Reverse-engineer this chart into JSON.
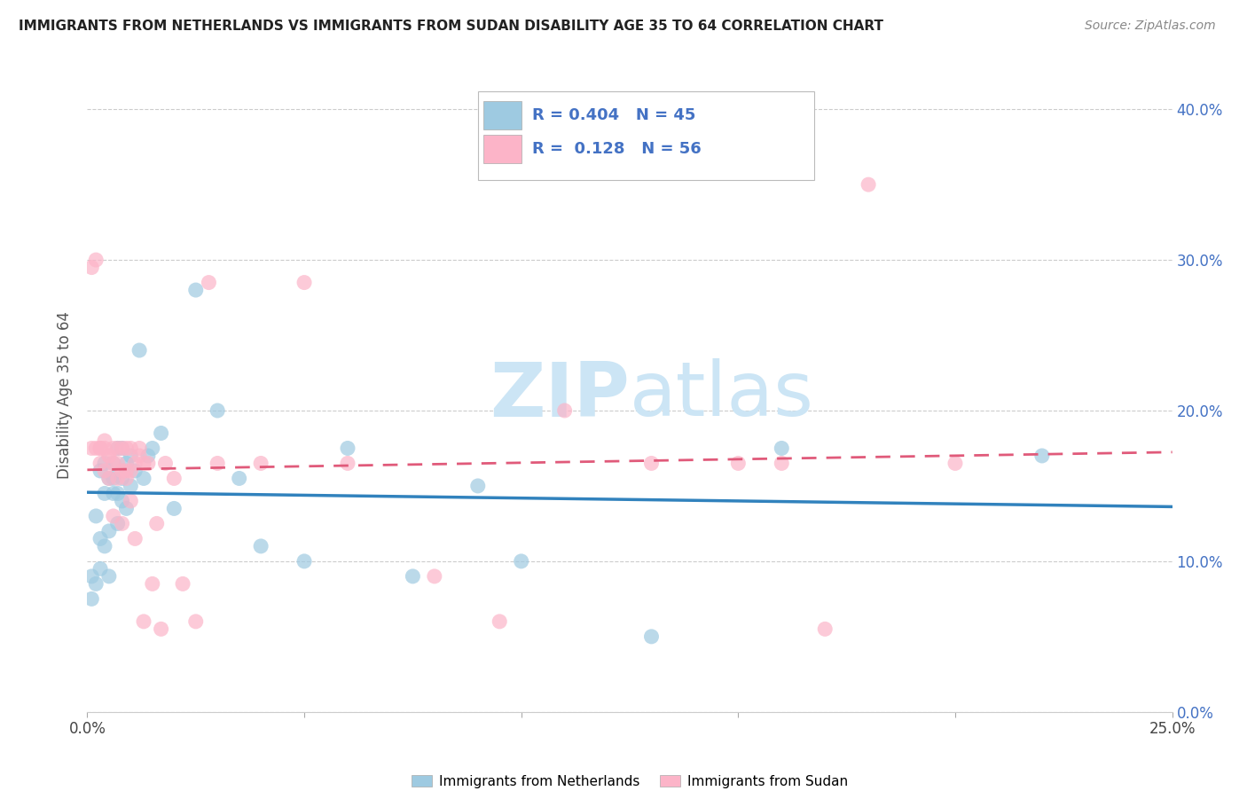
{
  "title": "IMMIGRANTS FROM NETHERLANDS VS IMMIGRANTS FROM SUDAN DISABILITY AGE 35 TO 64 CORRELATION CHART",
  "source": "Source: ZipAtlas.com",
  "ylabel": "Disability Age 35 to 64",
  "xlim": [
    0.0,
    0.25
  ],
  "ylim": [
    0.0,
    0.42
  ],
  "xticks": [
    0.0,
    0.05,
    0.1,
    0.15,
    0.2,
    0.25
  ],
  "yticks": [
    0.0,
    0.1,
    0.2,
    0.3,
    0.4
  ],
  "r_netherlands": 0.404,
  "n_netherlands": 45,
  "r_sudan": 0.128,
  "n_sudan": 56,
  "color_netherlands": "#9ecae1",
  "color_sudan": "#fcb4c8",
  "color_netherlands_line": "#3182bd",
  "color_sudan_line": "#e05a7a",
  "watermark_zip": "ZIP",
  "watermark_atlas": "atlas",
  "watermark_color": "#cce5f5",
  "legend_label_netherlands": "Immigrants from Netherlands",
  "legend_label_sudan": "Immigrants from Sudan",
  "legend_r_n_color": "#4472c4",
  "netherlands_x": [
    0.001,
    0.001,
    0.002,
    0.002,
    0.003,
    0.003,
    0.003,
    0.004,
    0.004,
    0.004,
    0.005,
    0.005,
    0.005,
    0.006,
    0.006,
    0.006,
    0.007,
    0.007,
    0.007,
    0.008,
    0.008,
    0.008,
    0.009,
    0.009,
    0.01,
    0.01,
    0.011,
    0.012,
    0.013,
    0.014,
    0.015,
    0.017,
    0.02,
    0.025,
    0.03,
    0.035,
    0.04,
    0.05,
    0.06,
    0.075,
    0.09,
    0.1,
    0.13,
    0.16,
    0.22
  ],
  "netherlands_y": [
    0.09,
    0.075,
    0.085,
    0.13,
    0.095,
    0.115,
    0.16,
    0.11,
    0.145,
    0.165,
    0.09,
    0.12,
    0.155,
    0.145,
    0.155,
    0.165,
    0.125,
    0.145,
    0.175,
    0.14,
    0.155,
    0.175,
    0.135,
    0.165,
    0.15,
    0.17,
    0.16,
    0.24,
    0.155,
    0.17,
    0.175,
    0.185,
    0.135,
    0.28,
    0.2,
    0.155,
    0.11,
    0.1,
    0.175,
    0.09,
    0.15,
    0.1,
    0.05,
    0.175,
    0.17
  ],
  "sudan_x": [
    0.001,
    0.001,
    0.002,
    0.002,
    0.003,
    0.003,
    0.003,
    0.004,
    0.004,
    0.004,
    0.005,
    0.005,
    0.005,
    0.006,
    0.006,
    0.006,
    0.007,
    0.007,
    0.007,
    0.008,
    0.008,
    0.008,
    0.009,
    0.009,
    0.009,
    0.01,
    0.01,
    0.01,
    0.011,
    0.011,
    0.012,
    0.012,
    0.013,
    0.013,
    0.014,
    0.015,
    0.016,
    0.017,
    0.018,
    0.02,
    0.022,
    0.025,
    0.028,
    0.03,
    0.04,
    0.05,
    0.06,
    0.08,
    0.095,
    0.11,
    0.13,
    0.15,
    0.16,
    0.17,
    0.18,
    0.2
  ],
  "sudan_y": [
    0.175,
    0.295,
    0.175,
    0.3,
    0.175,
    0.165,
    0.175,
    0.18,
    0.16,
    0.175,
    0.17,
    0.17,
    0.155,
    0.165,
    0.13,
    0.175,
    0.155,
    0.175,
    0.165,
    0.16,
    0.125,
    0.175,
    0.16,
    0.155,
    0.175,
    0.14,
    0.16,
    0.175,
    0.165,
    0.115,
    0.175,
    0.17,
    0.165,
    0.06,
    0.165,
    0.085,
    0.125,
    0.055,
    0.165,
    0.155,
    0.085,
    0.06,
    0.285,
    0.165,
    0.165,
    0.285,
    0.165,
    0.09,
    0.06,
    0.2,
    0.165,
    0.165,
    0.165,
    0.055,
    0.35,
    0.165
  ]
}
